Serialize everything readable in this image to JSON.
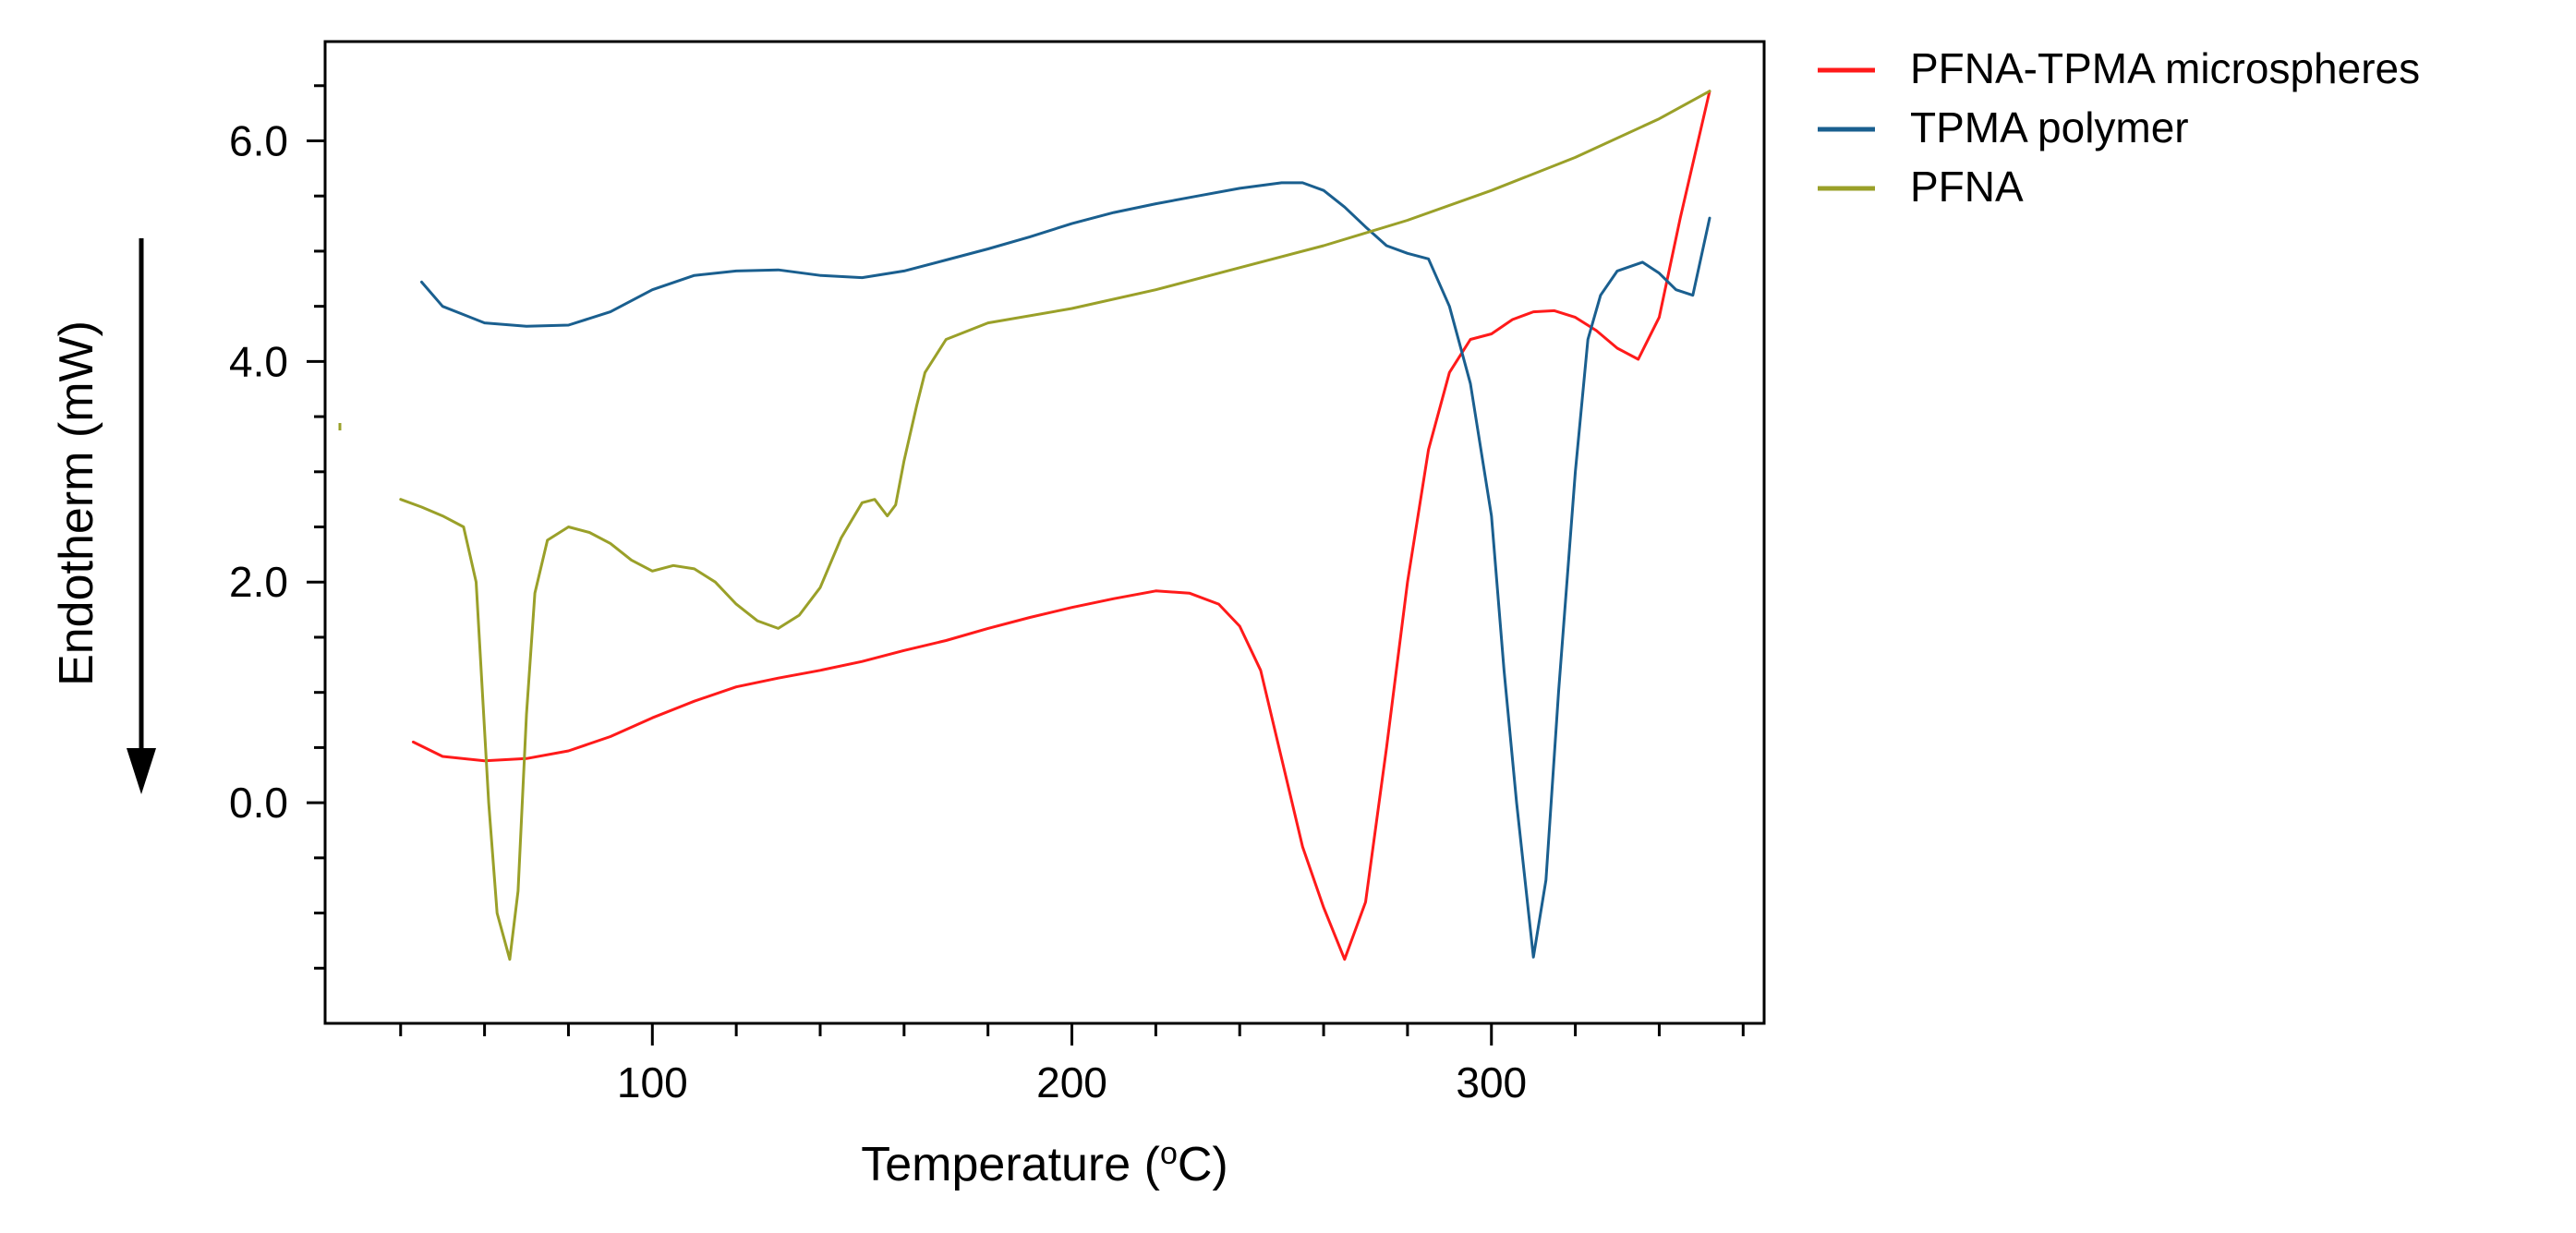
{
  "chart_data": {
    "type": "line",
    "title": "",
    "xlabel": "Temperature (",
    "xlabel_sup": "o",
    "xlabel_suffix": "C)",
    "ylabel": "Endotherm (mW)",
    "xlim": [
      22,
      365
    ],
    "ylim": [
      -2.0,
      6.9
    ],
    "grid": false,
    "legend_position": "right",
    "x_ticks": [
      {
        "value": 100,
        "label": "100"
      },
      {
        "value": 200,
        "label": "200"
      },
      {
        "value": 300,
        "label": "300"
      }
    ],
    "y_ticks": [
      {
        "value": 0.0,
        "label": "0.0"
      },
      {
        "value": 2.0,
        "label": "2.0"
      },
      {
        "value": 4.0,
        "label": "4.0"
      },
      {
        "value": 6.0,
        "label": "6.0"
      }
    ],
    "series": [
      {
        "name": "PFNA-TPMA microspheres",
        "color": "#ff1a1a",
        "x": [
          43,
          50,
          60,
          70,
          80,
          90,
          100,
          110,
          120,
          130,
          140,
          150,
          160,
          170,
          180,
          190,
          200,
          210,
          220,
          228,
          235,
          240,
          245,
          250,
          255,
          260,
          265,
          270,
          275,
          280,
          285,
          290,
          295,
          300,
          305,
          310,
          315,
          320,
          325,
          330,
          335,
          340,
          345,
          352
        ],
        "y": [
          0.55,
          0.42,
          0.38,
          0.4,
          0.47,
          0.6,
          0.77,
          0.92,
          1.05,
          1.13,
          1.2,
          1.28,
          1.38,
          1.47,
          1.58,
          1.68,
          1.77,
          1.85,
          1.92,
          1.9,
          1.8,
          1.6,
          1.2,
          0.4,
          -0.4,
          -0.95,
          -1.42,
          -0.9,
          0.5,
          2.0,
          3.2,
          3.9,
          4.2,
          4.25,
          4.38,
          4.45,
          4.46,
          4.4,
          4.28,
          4.12,
          4.02,
          4.4,
          5.3,
          6.45
        ]
      },
      {
        "name": "TPMA polymer",
        "color": "#1a5f8f",
        "x": [
          45,
          50,
          60,
          70,
          80,
          90,
          100,
          110,
          120,
          130,
          140,
          150,
          160,
          170,
          180,
          190,
          200,
          210,
          220,
          230,
          240,
          250,
          255,
          260,
          265,
          270,
          275,
          280,
          285,
          290,
          295,
          300,
          303,
          306,
          310,
          313,
          316,
          320,
          323,
          326,
          330,
          333,
          336,
          340,
          344,
          348,
          352
        ],
        "y": [
          4.72,
          4.5,
          4.35,
          4.32,
          4.33,
          4.45,
          4.65,
          4.78,
          4.82,
          4.83,
          4.78,
          4.76,
          4.82,
          4.92,
          5.02,
          5.13,
          5.25,
          5.35,
          5.43,
          5.5,
          5.57,
          5.62,
          5.62,
          5.55,
          5.4,
          5.22,
          5.05,
          4.98,
          4.93,
          4.5,
          3.8,
          2.6,
          1.2,
          0.0,
          -1.4,
          -0.7,
          1.0,
          3.0,
          4.2,
          4.6,
          4.82,
          4.86,
          4.9,
          4.8,
          4.65,
          4.6,
          5.3
        ]
      },
      {
        "name": "PFNA",
        "color": "#9aa029",
        "x": [
          40,
          45,
          50,
          55,
          58,
          61,
          63,
          66,
          68,
          70,
          72,
          75,
          80,
          85,
          90,
          95,
          100,
          105,
          110,
          115,
          120,
          125,
          130,
          135,
          140,
          145,
          150,
          153,
          156,
          158,
          160,
          163,
          165,
          170,
          180,
          200,
          220,
          240,
          260,
          280,
          300,
          320,
          340,
          352
        ],
        "y": [
          2.75,
          2.68,
          2.6,
          2.5,
          2.0,
          0.0,
          -1.0,
          -1.42,
          -0.8,
          0.8,
          1.9,
          2.38,
          2.5,
          2.45,
          2.35,
          2.2,
          2.1,
          2.15,
          2.12,
          2.0,
          1.8,
          1.65,
          1.58,
          1.7,
          1.95,
          2.4,
          2.72,
          2.75,
          2.6,
          2.7,
          3.1,
          3.6,
          3.9,
          4.2,
          4.35,
          4.48,
          4.65,
          4.85,
          5.05,
          5.28,
          5.55,
          5.85,
          6.2,
          6.45
        ]
      }
    ]
  }
}
